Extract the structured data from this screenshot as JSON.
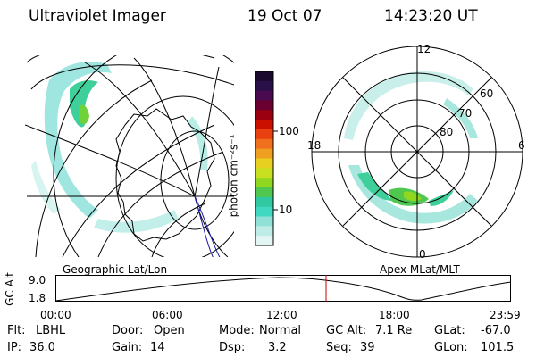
{
  "header": {
    "instrument": "Ultraviolet Imager",
    "date": "19 Oct 07",
    "time": "14:23:20 UT"
  },
  "colorbar": {
    "unit_label": "photon cm⁻²s⁻¹",
    "ticks": [
      "100",
      "10"
    ],
    "colors": [
      "#1a0a2e",
      "#2a1048",
      "#4a0a50",
      "#6a0030",
      "#9a0010",
      "#cc1000",
      "#e84010",
      "#f07020",
      "#f0a020",
      "#e8d020",
      "#c8e020",
      "#90d820",
      "#50c850",
      "#30c8a0",
      "#40d8c0",
      "#90e0d8",
      "#c0ece8",
      "#e4f6f4"
    ]
  },
  "polar": {
    "labels": {
      "top": "12",
      "left": "18",
      "right": "6",
      "bottom": "0"
    },
    "ring_labels": [
      "60",
      "70",
      "80"
    ]
  },
  "map_titles": {
    "left": "Geographic Lat/Lon",
    "right": "Apex MLat/MLT"
  },
  "altitude_plot": {
    "axis_label": "GC Alt",
    "y_ticks": [
      "9.0",
      "1.8"
    ],
    "x_ticks": [
      "00:00",
      "06:00",
      "12:00",
      "18:00",
      "23:59"
    ],
    "marker_color": "#cc0000"
  },
  "info": {
    "flt_label": "Flt:",
    "flt_value": "LBHL",
    "door_label": "Door:",
    "door_value": "Open",
    "mode_label": "Mode:",
    "mode_value": "Normal",
    "gcalt_label": "GC Alt:",
    "gcalt_value": "7.1 Re",
    "glat_label": "GLat:",
    "glat_value": "-67.0",
    "ip_label": "IP:",
    "ip_value": "36.0",
    "gain_label": "Gain:",
    "gain_value": "14",
    "dsp_label": "Dsp:",
    "dsp_value": "3.2",
    "seq_label": "Seq:",
    "seq_value": "39",
    "glon_label": "GLon:",
    "glon_value": "101.5"
  }
}
